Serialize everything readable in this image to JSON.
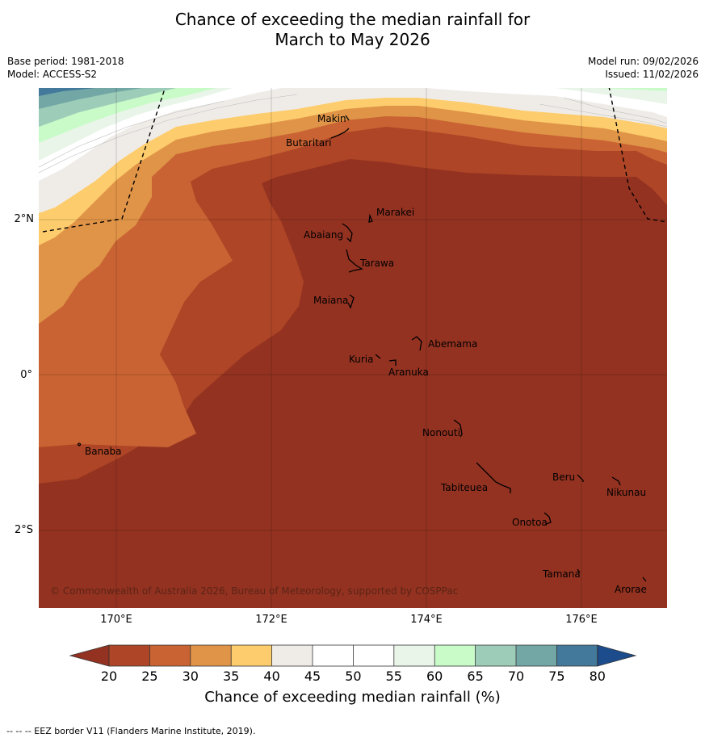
{
  "title": {
    "line1": "Chance of exceeding the median rainfall for",
    "line2": "March to May 2026"
  },
  "meta": {
    "base_period": "Base period: 1981-2018",
    "model": "Model: ACCESS-S2",
    "model_run": "Model run: 09/02/2026",
    "issued": "Issued: 11/02/2026"
  },
  "map": {
    "latitude_labels": [
      "2°N",
      "0°",
      "2°S"
    ],
    "longitude_labels": [
      "170°E",
      "172°E",
      "174°E",
      "176°E"
    ],
    "copyright": "© Commonwealth of Australia 2026, Bureau of Meteorology, supported by COSPPac",
    "islands": [
      {
        "name": "Makin"
      },
      {
        "name": "Butaritari"
      },
      {
        "name": "Marakei"
      },
      {
        "name": "Abaiang"
      },
      {
        "name": "Tarawa"
      },
      {
        "name": "Maiana"
      },
      {
        "name": "Abemama"
      },
      {
        "name": "Kuria"
      },
      {
        "name": "Aranuka"
      },
      {
        "name": "Nonouti"
      },
      {
        "name": "Banaba"
      },
      {
        "name": "Beru"
      },
      {
        "name": "Tabiteuea"
      },
      {
        "name": "Nikunau"
      },
      {
        "name": "Onotoa"
      },
      {
        "name": "Tamana"
      },
      {
        "name": "Arorae"
      }
    ]
  },
  "colorbar": {
    "label": "Chance of exceeding median rainfall (%)",
    "ticks": [
      "20",
      "25",
      "30",
      "35",
      "40",
      "45",
      "50",
      "55",
      "60",
      "65",
      "70",
      "75",
      "80"
    ],
    "colors": {
      "below_20": "#943221",
      "c20_25": "#ad4526",
      "c25_30": "#c96333",
      "c30_35": "#e09447",
      "c35_40": "#fdcc6c",
      "c40_45": "#efece8",
      "c45_50": "#ffffff",
      "c50_55": "#ffffff",
      "c55_60": "#eaf5ea",
      "c60_65": "#c9fbc9",
      "c65_70": "#9dcdb8",
      "c70_75": "#72a7a6",
      "c75_80": "#437a9b",
      "above_80": "#1c4c8b"
    }
  },
  "footnote": "-- -- -- EEZ border V11 (Flanders Marine Institute, 2019)."
}
